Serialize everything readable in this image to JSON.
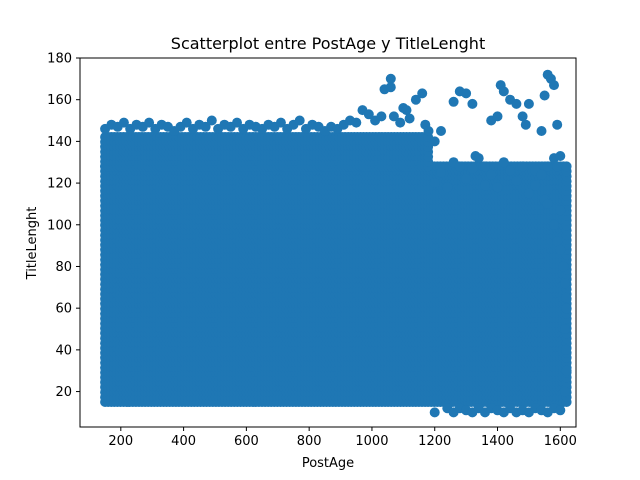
{
  "chart_data": {
    "type": "scatter",
    "title": "Scatterplot entre PostAge y TitleLenght",
    "xlabel": "PostAge",
    "ylabel": "TitleLenght",
    "xlim": [
      70,
      1650
    ],
    "ylim": [
      3,
      180
    ],
    "x_ticks": [
      200,
      400,
      600,
      800,
      1000,
      1200,
      1400,
      1600
    ],
    "y_ticks": [
      20,
      40,
      60,
      80,
      100,
      120,
      140,
      160,
      180
    ],
    "grid": false,
    "legend": "none",
    "color": "#1f77b4",
    "dense_region": {
      "x_range": [
        150,
        1620
      ],
      "y_range": [
        15,
        128
      ]
    },
    "upper_boundary_points": [
      [
        150,
        146
      ],
      [
        170,
        148
      ],
      [
        190,
        147
      ],
      [
        210,
        149
      ],
      [
        230,
        146
      ],
      [
        250,
        148
      ],
      [
        270,
        147
      ],
      [
        290,
        149
      ],
      [
        310,
        146
      ],
      [
        330,
        148
      ],
      [
        350,
        147
      ],
      [
        370,
        145
      ],
      [
        390,
        147
      ],
      [
        410,
        149
      ],
      [
        430,
        146
      ],
      [
        450,
        148
      ],
      [
        470,
        147
      ],
      [
        490,
        150
      ],
      [
        510,
        146
      ],
      [
        530,
        148
      ],
      [
        550,
        147
      ],
      [
        570,
        149
      ],
      [
        590,
        146
      ],
      [
        610,
        148
      ],
      [
        630,
        147
      ],
      [
        650,
        146
      ],
      [
        670,
        148
      ],
      [
        690,
        147
      ],
      [
        710,
        149
      ],
      [
        730,
        146
      ],
      [
        750,
        148
      ],
      [
        770,
        150
      ],
      [
        790,
        146
      ],
      [
        810,
        148
      ],
      [
        830,
        147
      ],
      [
        850,
        145
      ],
      [
        870,
        147
      ],
      [
        890,
        146
      ],
      [
        910,
        148
      ],
      [
        930,
        150
      ],
      [
        950,
        149
      ],
      [
        970,
        155
      ],
      [
        990,
        153
      ],
      [
        1010,
        150
      ],
      [
        1030,
        152
      ],
      [
        1040,
        165
      ],
      [
        1060,
        170
      ],
      [
        1060,
        166
      ],
      [
        1070,
        152
      ],
      [
        1090,
        149
      ],
      [
        1100,
        156
      ],
      [
        1110,
        155
      ],
      [
        1120,
        151
      ],
      [
        1140,
        160
      ],
      [
        1160,
        163
      ],
      [
        1170,
        148
      ],
      [
        1180,
        145
      ],
      [
        1200,
        140
      ],
      [
        1220,
        145
      ],
      [
        1260,
        159
      ],
      [
        1280,
        164
      ],
      [
        1300,
        163
      ],
      [
        1320,
        158
      ],
      [
        1330,
        133
      ],
      [
        1360,
        128
      ],
      [
        1380,
        150
      ],
      [
        1400,
        152
      ],
      [
        1410,
        167
      ],
      [
        1420,
        164
      ],
      [
        1440,
        160
      ],
      [
        1460,
        158
      ],
      [
        1480,
        152
      ],
      [
        1490,
        148
      ],
      [
        1500,
        158
      ],
      [
        1520,
        126
      ],
      [
        1540,
        145
      ],
      [
        1550,
        162
      ],
      [
        1560,
        172
      ],
      [
        1570,
        170
      ],
      [
        1580,
        167
      ],
      [
        1590,
        148
      ],
      [
        1600,
        107
      ]
    ],
    "lower_outlier_points": [
      [
        1200,
        10
      ],
      [
        1240,
        12
      ],
      [
        1260,
        10
      ],
      [
        1280,
        12
      ],
      [
        1300,
        11
      ],
      [
        1320,
        10
      ],
      [
        1340,
        12
      ],
      [
        1360,
        10
      ],
      [
        1380,
        12
      ],
      [
        1400,
        11
      ],
      [
        1420,
        10
      ],
      [
        1440,
        12
      ],
      [
        1460,
        10
      ],
      [
        1480,
        11
      ],
      [
        1500,
        10
      ],
      [
        1520,
        12
      ],
      [
        1540,
        11
      ],
      [
        1560,
        10
      ],
      [
        1580,
        12
      ],
      [
        1600,
        11
      ]
    ],
    "right_fade_points": [
      [
        1560,
        110
      ],
      [
        1580,
        100
      ],
      [
        1590,
        92
      ],
      [
        1600,
        88
      ],
      [
        1610,
        80
      ],
      [
        1615,
        72
      ],
      [
        1618,
        65
      ],
      [
        1620,
        60
      ],
      [
        1615,
        50
      ],
      [
        1618,
        40
      ],
      [
        1620,
        30
      ],
      [
        1615,
        20
      ]
    ],
    "upper_scatter_points": [
      [
        1200,
        120
      ],
      [
        1220,
        125
      ],
      [
        1240,
        118
      ],
      [
        1260,
        130
      ],
      [
        1280,
        128
      ],
      [
        1300,
        122
      ],
      [
        1320,
        127
      ],
      [
        1340,
        132
      ],
      [
        1360,
        119
      ],
      [
        1380,
        124
      ],
      [
        1400,
        118
      ],
      [
        1420,
        130
      ],
      [
        1440,
        126
      ],
      [
        1460,
        121
      ],
      [
        1480,
        128
      ],
      [
        1500,
        115
      ],
      [
        1520,
        119
      ],
      [
        1540,
        124
      ],
      [
        1550,
        112
      ],
      [
        1560,
        128
      ],
      [
        1580,
        132
      ],
      [
        1600,
        133
      ],
      [
        1590,
        128
      ]
    ]
  }
}
